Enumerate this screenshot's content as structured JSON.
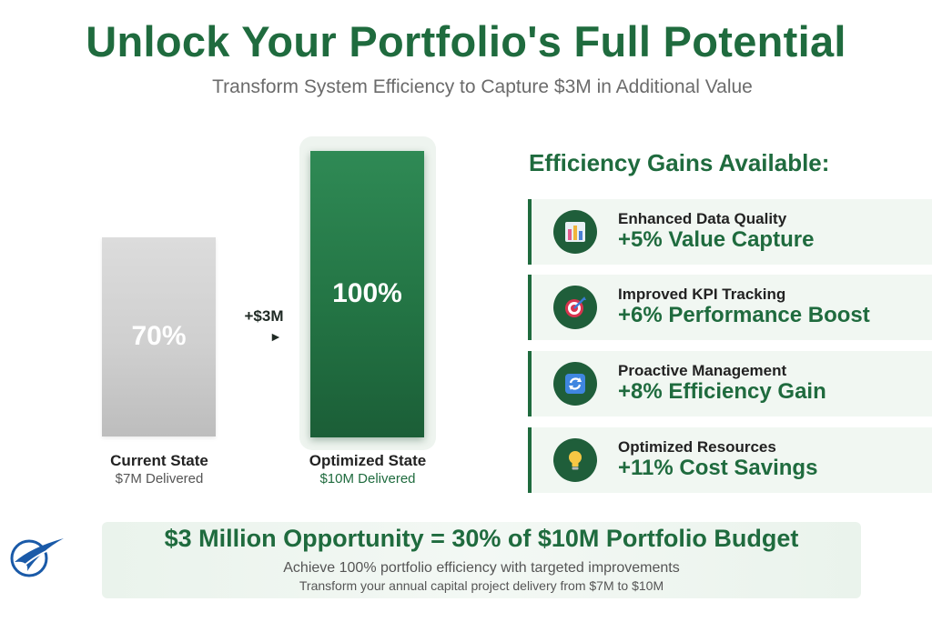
{
  "header": {
    "title": "Unlock Your Portfolio's Full Potential",
    "subtitle": "Transform System Efficiency to Capture $3M in Additional Value"
  },
  "comparison": {
    "current": {
      "percent": "70%",
      "label": "Current State",
      "delivered": "$7M Delivered",
      "color": "#c8c8c8"
    },
    "optimized": {
      "percent": "100%",
      "label": "Optimized State",
      "delivered": "$10M Delivered",
      "color": "#237444"
    },
    "arrow_label": "+$3M",
    "arrow_glyph": "►"
  },
  "gains": {
    "heading": "Efficiency Gains Available:",
    "items": [
      {
        "title": "Enhanced Data Quality",
        "value": "+5% Value Capture",
        "icon": "bar-chart-icon"
      },
      {
        "title": "Improved KPI Tracking",
        "value": "+6% Performance Boost",
        "icon": "target-icon"
      },
      {
        "title": "Proactive Management",
        "value": "+8% Efficiency Gain",
        "icon": "refresh-icon"
      },
      {
        "title": "Optimized Resources",
        "value": "+11% Cost Savings",
        "icon": "lightbulb-icon"
      }
    ]
  },
  "banner": {
    "title": "$3 Million Opportunity = 30% of $10M Portfolio Budget",
    "line1": "Achieve 100% portfolio efficiency with targeted improvements",
    "line2": "Transform your annual capital project delivery from $7M to $10M"
  },
  "colors": {
    "brand_green": "#1f6b3e",
    "muted_gray": "#6b6b6b",
    "logo_blue": "#1a5aa8"
  }
}
